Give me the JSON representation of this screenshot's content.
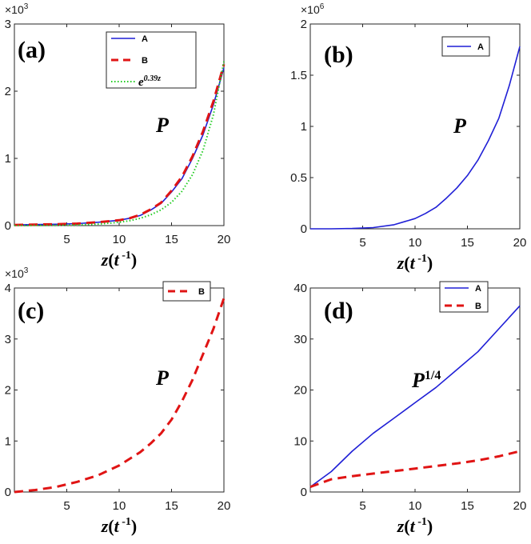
{
  "chart_data": [
    {
      "panel": "(a)",
      "type": "line",
      "x_multiplier_text": "",
      "y_multiplier": {
        "base": "×10",
        "exp": "3"
      },
      "xticks": [
        "5",
        "10",
        "15",
        "20"
      ],
      "yticks": [
        "0",
        "1",
        "2",
        "3"
      ],
      "xlim": [
        0,
        20
      ],
      "ylim": [
        0,
        3
      ],
      "xlabel": {
        "main": "z(t",
        "exp": "-1",
        "close": ")"
      },
      "annotation": {
        "main": "P",
        "exp": ""
      },
      "legend": [
        {
          "name": "A",
          "color": "#1f1fd6",
          "dash": "solid"
        },
        {
          "name": "B",
          "color": "#e01414",
          "dash": "dashed"
        },
        {
          "name": "e",
          "exp": "0.39z",
          "color": "#22cc22",
          "dash": "dotted"
        }
      ],
      "series": [
        {
          "name": "A",
          "color": "#1f1fd6",
          "dash": "solid",
          "x": [
            0,
            2,
            4,
            6,
            8,
            10,
            11,
            12,
            13,
            14,
            15,
            16,
            17,
            18,
            19,
            20
          ],
          "y": [
            0.01,
            0.015,
            0.02,
            0.03,
            0.05,
            0.08,
            0.11,
            0.15,
            0.23,
            0.33,
            0.5,
            0.7,
            1.0,
            1.35,
            1.8,
            2.35
          ]
        },
        {
          "name": "B",
          "color": "#e01414",
          "dash": "dashed",
          "x": [
            0,
            2,
            4,
            6,
            8,
            10,
            11,
            12,
            13,
            14,
            15,
            16,
            17,
            18,
            19,
            20
          ],
          "y": [
            0.01,
            0.015,
            0.02,
            0.03,
            0.05,
            0.08,
            0.11,
            0.16,
            0.24,
            0.34,
            0.52,
            0.73,
            1.03,
            1.4,
            1.85,
            2.4
          ]
        },
        {
          "name": "e^0.39z",
          "color": "#22cc22",
          "dash": "dotted",
          "x": [
            0,
            2,
            4,
            6,
            8,
            10,
            11,
            12,
            13,
            14,
            15,
            16,
            17,
            18,
            19,
            20
          ],
          "y": [
            0.001,
            0.002,
            0.005,
            0.01,
            0.023,
            0.049,
            0.073,
            0.108,
            0.159,
            0.235,
            0.347,
            0.512,
            0.757,
            1.118,
            1.651,
            2.44
          ]
        }
      ]
    },
    {
      "panel": "(b)",
      "type": "line",
      "y_multiplier": {
        "base": "×10",
        "exp": "6"
      },
      "xticks": [
        "5",
        "10",
        "15",
        "20"
      ],
      "yticks": [
        "0",
        "0.5",
        "1",
        "1.5",
        "2"
      ],
      "xlim": [
        0,
        20
      ],
      "ylim": [
        0,
        2
      ],
      "xlabel": {
        "main": "z(t",
        "exp": "-1",
        "close": ")"
      },
      "annotation": {
        "main": "P",
        "exp": ""
      },
      "legend": [
        {
          "name": "A",
          "color": "#1f1fd6",
          "dash": "solid"
        }
      ],
      "series": [
        {
          "name": "A",
          "color": "#1f1fd6",
          "dash": "solid",
          "x": [
            0,
            2,
            4,
            6,
            8,
            10,
            11,
            12,
            13,
            14,
            15,
            16,
            17,
            18,
            19,
            20
          ],
          "y": [
            0,
            0.0003,
            0.003,
            0.012,
            0.04,
            0.1,
            0.15,
            0.21,
            0.3,
            0.4,
            0.52,
            0.67,
            0.86,
            1.08,
            1.4,
            1.78
          ]
        }
      ]
    },
    {
      "panel": "(c)",
      "type": "line",
      "y_multiplier": {
        "base": "×10",
        "exp": "3"
      },
      "xticks": [
        "5",
        "10",
        "15",
        "20"
      ],
      "yticks": [
        "0",
        "1",
        "2",
        "3",
        "4"
      ],
      "xlim": [
        0,
        20
      ],
      "ylim": [
        0,
        4
      ],
      "xlabel": {
        "main": "z(t",
        "exp": "-1",
        "close": ")"
      },
      "annotation": {
        "main": "P",
        "exp": ""
      },
      "legend": [
        {
          "name": "B",
          "color": "#e01414",
          "dash": "dashed"
        }
      ],
      "series": [
        {
          "name": "B",
          "color": "#e01414",
          "dash": "dashed",
          "x": [
            0,
            2,
            4,
            6,
            8,
            10,
            12,
            13,
            14,
            15,
            16,
            17,
            18,
            19,
            20
          ],
          "y": [
            0,
            0.04,
            0.1,
            0.2,
            0.33,
            0.52,
            0.78,
            0.95,
            1.15,
            1.42,
            1.78,
            2.2,
            2.7,
            3.2,
            3.8
          ]
        }
      ]
    },
    {
      "panel": "(d)",
      "type": "line",
      "y_multiplier": {
        "base": "",
        "exp": ""
      },
      "xticks": [
        "5",
        "10",
        "15",
        "20"
      ],
      "yticks": [
        "0",
        "10",
        "20",
        "30",
        "40"
      ],
      "xlim": [
        0,
        20
      ],
      "ylim": [
        0,
        40
      ],
      "xlabel": {
        "main": "z(t",
        "exp": "-1",
        "close": ")"
      },
      "annotation": {
        "main": "P",
        "exp": "1/4"
      },
      "legend": [
        {
          "name": "A",
          "color": "#1f1fd6",
          "dash": "solid"
        },
        {
          "name": "B",
          "color": "#e01414",
          "dash": "dashed"
        }
      ],
      "series": [
        {
          "name": "A",
          "color": "#1f1fd6",
          "dash": "solid",
          "x": [
            0,
            2,
            4,
            6,
            8,
            10,
            12,
            14,
            16,
            18,
            20
          ],
          "y": [
            1,
            4,
            8,
            11.5,
            14.5,
            17.5,
            20.5,
            24,
            27.5,
            32,
            36.5
          ]
        },
        {
          "name": "B",
          "color": "#e01414",
          "dash": "dashed",
          "x": [
            0,
            2,
            4,
            6,
            8,
            10,
            12,
            14,
            16,
            18,
            20
          ],
          "y": [
            1,
            2.5,
            3.1,
            3.6,
            4.1,
            4.6,
            5.1,
            5.6,
            6.2,
            7,
            8
          ]
        }
      ]
    }
  ]
}
